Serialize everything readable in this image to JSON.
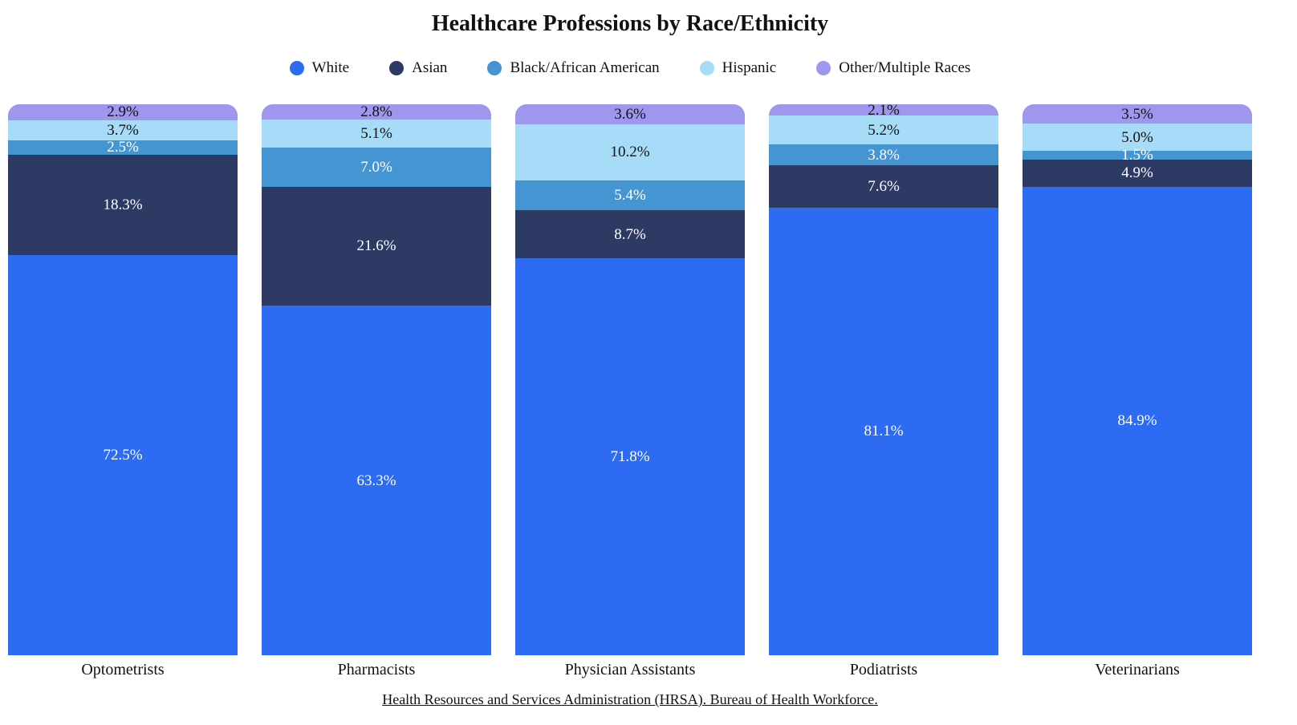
{
  "title": "Healthcare Professions by Race/Ethnicity",
  "source_text": "Health Resources and Services Administration (HRSA). Bureau of Health Workforce.",
  "colors": {
    "background": "#ffffff",
    "text_dark": "#111111",
    "text_light": "#ffffff",
    "white_series": "#2D6BF2",
    "asian_series": "#2C3A64",
    "black_series": "#4495D2",
    "hispanic_series": "#A7DCF8",
    "other_series": "#9D98EE"
  },
  "chart_data": {
    "type": "bar",
    "variant": "100-percent-stacked-column",
    "title": "Healthcare Professions by Race/Ethnicity",
    "legend_position": "top",
    "value_format": "one-decimal-percent",
    "grid": false,
    "categories": [
      "Optometrists",
      "Pharmacists",
      "Physician Assistants",
      "Podiatrists",
      "Veterinarians"
    ],
    "stack_order_top_to_bottom": [
      "Other/Multiple Races",
      "Hispanic",
      "Black/African American",
      "Asian",
      "White"
    ],
    "series": [
      {
        "name": "White",
        "color": "#2D6BF2",
        "label_color": "#ffffff",
        "values": [
          72.5,
          63.3,
          71.8,
          81.1,
          84.9
        ]
      },
      {
        "name": "Asian",
        "color": "#2C3A64",
        "label_color": "#ffffff",
        "values": [
          18.3,
          21.6,
          8.7,
          7.6,
          4.9
        ]
      },
      {
        "name": "Black/African American",
        "color": "#4495D2",
        "label_color": "#ffffff",
        "values": [
          2.5,
          7.0,
          5.4,
          3.8,
          1.5
        ]
      },
      {
        "name": "Hispanic",
        "color": "#A7DCF8",
        "label_color": "#111111",
        "values": [
          3.7,
          5.1,
          10.2,
          5.2,
          5.0
        ]
      },
      {
        "name": "Other/Multiple Races",
        "color": "#9D98EE",
        "label_color": "#111111",
        "values": [
          2.9,
          2.8,
          3.6,
          2.1,
          3.5
        ]
      }
    ]
  }
}
